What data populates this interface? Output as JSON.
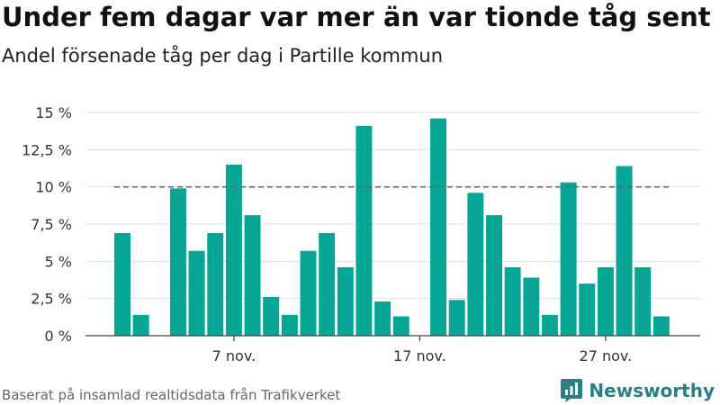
{
  "chart_data": {
    "type": "bar",
    "title": "Under fem dagar var mer än var tionde tåg sent",
    "subtitle": "Andel försenade tåg per dag i Partille kommun",
    "ylim": [
      0,
      15
    ],
    "yticks": [
      "0 %",
      "2,5 %",
      "5 %",
      "7,5 %",
      "10 %",
      "12,5 %",
      "15 %"
    ],
    "ytick_values": [
      0,
      2.5,
      5,
      7.5,
      10,
      12.5,
      15
    ],
    "xticks": [
      {
        "label": "7 nov.",
        "day": 7
      },
      {
        "label": "17 nov.",
        "day": 17
      },
      {
        "label": "27 nov.",
        "day": 27
      }
    ],
    "days": [
      1,
      2,
      3,
      4,
      5,
      6,
      7,
      8,
      9,
      10,
      11,
      12,
      13,
      14,
      15,
      16,
      17,
      18,
      19,
      20,
      21,
      22,
      23,
      24,
      25,
      26,
      27,
      28,
      29,
      30
    ],
    "values": [
      6.9,
      1.4,
      null,
      9.9,
      5.7,
      6.9,
      11.5,
      8.1,
      2.6,
      1.4,
      5.7,
      6.9,
      4.6,
      14.1,
      2.3,
      1.3,
      null,
      14.6,
      2.4,
      9.6,
      8.1,
      4.6,
      3.9,
      1.4,
      10.3,
      3.5,
      4.6,
      11.4,
      4.6,
      1.3
    ],
    "reference_line": 10,
    "grid": true,
    "bar_color": "#07a596"
  },
  "source_text": "Baserat på insamlad realtidsdata från Trafikverket",
  "brand": {
    "name": "Newsworthy",
    "color": "#2a7f86",
    "icon": "newsworthy-logo-icon"
  }
}
